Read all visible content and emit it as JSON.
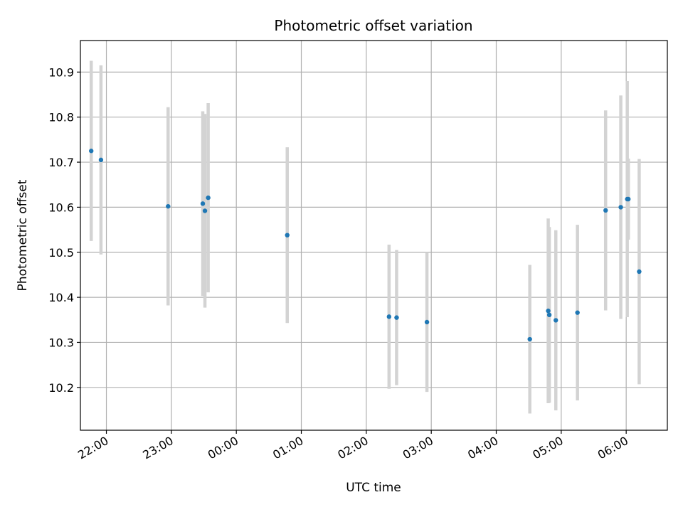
{
  "chart_data": {
    "type": "scatter",
    "title": "Photometric offset variation",
    "xlabel": "UTC time",
    "ylabel": "Photometric offset",
    "x_axis_kind": "utc-time",
    "xlim": [
      "21:36",
      "06:38"
    ],
    "ylim": [
      10.105,
      10.97
    ],
    "x_ticks": [
      "22:00",
      "23:00",
      "00:00",
      "01:00",
      "02:00",
      "03:00",
      "04:00",
      "05:00",
      "06:00"
    ],
    "y_ticks": [
      10.2,
      10.3,
      10.4,
      10.5,
      10.6,
      10.7,
      10.8,
      10.9
    ],
    "y_tick_labels": [
      "10.2",
      "10.3",
      "10.4",
      "10.5",
      "10.6",
      "10.7",
      "10.8",
      "10.9"
    ],
    "grid": true,
    "colors": {
      "point": "#1f77b4",
      "errorbar": "#d3d3d3",
      "grid": "#b0b0b0"
    },
    "points": [
      {
        "time": "21:46",
        "y": 10.725,
        "yerr": 0.2
      },
      {
        "time": "21:55",
        "y": 10.705,
        "yerr": 0.21
      },
      {
        "time": "22:57",
        "y": 10.602,
        "yerr": 0.22
      },
      {
        "time": "23:29",
        "y": 10.608,
        "yerr": 0.205
      },
      {
        "time": "23:31",
        "y": 10.592,
        "yerr": 0.215
      },
      {
        "time": "23:34",
        "y": 10.621,
        "yerr": 0.21
      },
      {
        "time": "00:47",
        "y": 10.538,
        "yerr": 0.195
      },
      {
        "time": "02:21",
        "y": 10.357,
        "yerr": 0.16
      },
      {
        "time": "02:28",
        "y": 10.355,
        "yerr": 0.15
      },
      {
        "time": "02:56",
        "y": 10.345,
        "yerr": 0.155
      },
      {
        "time": "04:31",
        "y": 10.307,
        "yerr": 0.165
      },
      {
        "time": "04:48",
        "y": 10.37,
        "yerr": 0.205
      },
      {
        "time": "04:49",
        "y": 10.361,
        "yerr": 0.195
      },
      {
        "time": "04:55",
        "y": 10.349,
        "yerr": 0.2
      },
      {
        "time": "05:15",
        "y": 10.366,
        "yerr": 0.195
      },
      {
        "time": "05:41",
        "y": 10.593,
        "yerr": 0.222
      },
      {
        "time": "05:55",
        "y": 10.6,
        "yerr": 0.248
      },
      {
        "time": "06:01",
        "y": 10.618,
        "yerr": 0.262
      },
      {
        "time": "06:02",
        "y": 10.618,
        "yerr": 0.09
      },
      {
        "time": "06:12",
        "y": 10.457,
        "yerr": 0.25
      }
    ]
  }
}
